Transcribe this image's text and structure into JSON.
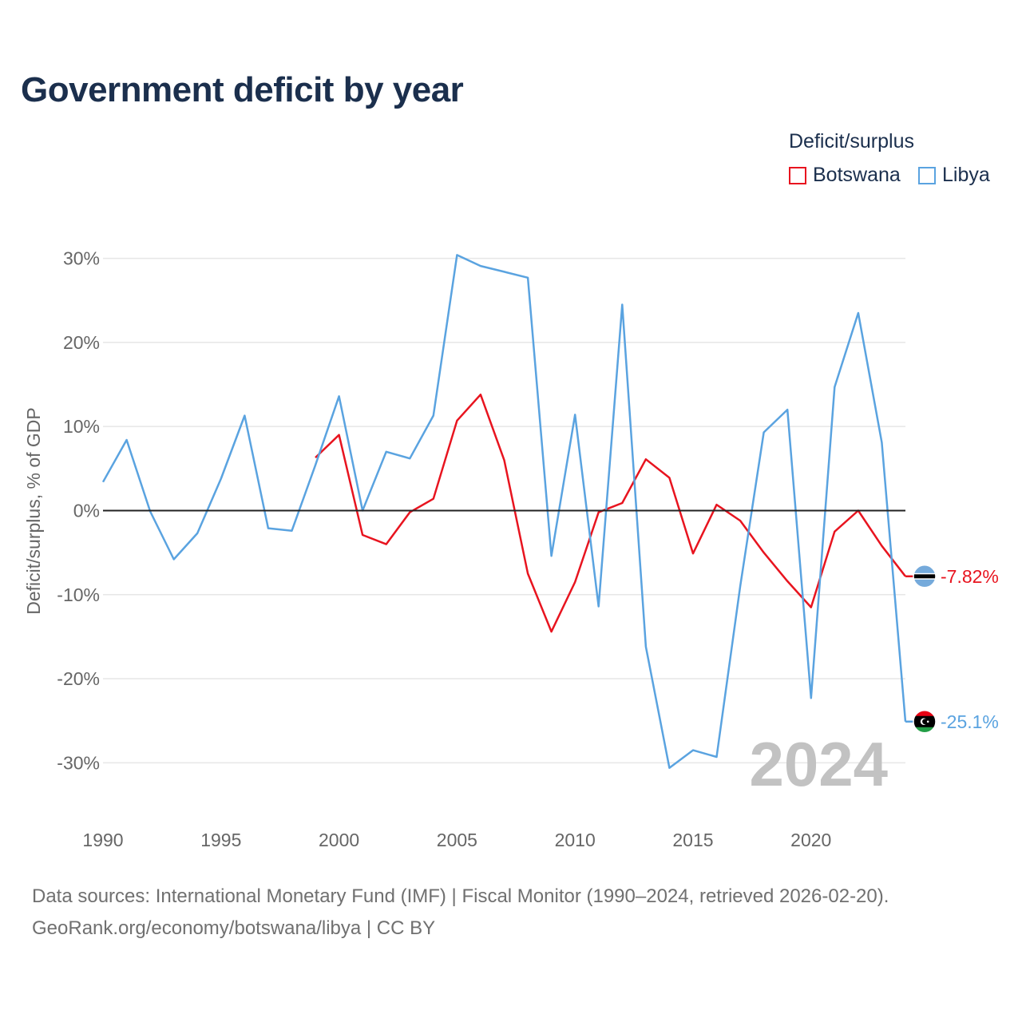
{
  "title": "Government deficit by year",
  "legend": {
    "title": "Deficit/surplus",
    "items": [
      {
        "label": "Botswana",
        "color": "#e8141f"
      },
      {
        "label": "Libya",
        "color": "#5aa3e0"
      }
    ]
  },
  "footer": {
    "source": "Data sources: International Monetary Fund (IMF) | Fiscal Monitor (1990–2024, retrieved 2026-02-20).",
    "credit": "GeoRank.org/economy/botswana/libya | CC BY"
  },
  "chart_data": {
    "type": "line",
    "title": "Government deficit by year",
    "xlabel": "",
    "ylabel": "Deficit/surplus, % of GDP",
    "xlim": [
      1990,
      2024
    ],
    "ylim": [
      -35,
      33
    ],
    "x_ticks": [
      1990,
      1995,
      2000,
      2005,
      2010,
      2015,
      2020
    ],
    "x_tick_labels": [
      "1990",
      "1995",
      "2000",
      "2005",
      "2010",
      "2015",
      "2020"
    ],
    "y_ticks": [
      30,
      20,
      10,
      0,
      -10,
      -20,
      -30
    ],
    "y_tick_labels": [
      "30%",
      "20%",
      "10%",
      "0%",
      "-10%",
      "-20%",
      "-30%"
    ],
    "grid": true,
    "year_watermark": "2024",
    "series": [
      {
        "name": "Botswana",
        "color": "#e8141f",
        "end_label": "-7.82%",
        "flag_icon": "botswana-flag-icon",
        "x": [
          1999,
          2000,
          2001,
          2002,
          2003,
          2004,
          2005,
          2006,
          2007,
          2008,
          2009,
          2010,
          2011,
          2012,
          2013,
          2014,
          2015,
          2016,
          2017,
          2018,
          2019,
          2020,
          2021,
          2022,
          2023,
          2024
        ],
        "values": [
          6.3,
          9.0,
          -2.9,
          -4.0,
          -0.2,
          1.4,
          10.7,
          13.8,
          6.0,
          -7.5,
          -14.4,
          -8.5,
          -0.2,
          0.9,
          6.1,
          3.9,
          -5.1,
          0.7,
          -1.2,
          -5.0,
          -8.4,
          -11.5,
          -2.5,
          0.0,
          -4.2,
          -7.82
        ]
      },
      {
        "name": "Libya",
        "color": "#5aa3e0",
        "end_label": "-25.1%",
        "flag_icon": "libya-flag-icon",
        "x": [
          1990,
          1991,
          1992,
          1993,
          1994,
          1995,
          1996,
          1997,
          1998,
          1999,
          2000,
          2001,
          2002,
          2003,
          2004,
          2005,
          2006,
          2007,
          2008,
          2009,
          2010,
          2011,
          2012,
          2013,
          2014,
          2015,
          2016,
          2017,
          2018,
          2019,
          2020,
          2021,
          2022,
          2023,
          2024
        ],
        "values": [
          3.4,
          8.4,
          -0.1,
          -5.8,
          -2.7,
          3.8,
          11.3,
          -2.1,
          -2.4,
          5.4,
          13.6,
          0.0,
          7.0,
          6.2,
          11.3,
          30.4,
          29.1,
          28.4,
          27.7,
          -5.4,
          11.4,
          -11.4,
          24.5,
          -16.2,
          -30.6,
          -28.5,
          -29.3,
          -9.0,
          9.3,
          12.0,
          -22.3,
          14.7,
          23.5,
          8.1,
          -25.1
        ]
      }
    ]
  }
}
